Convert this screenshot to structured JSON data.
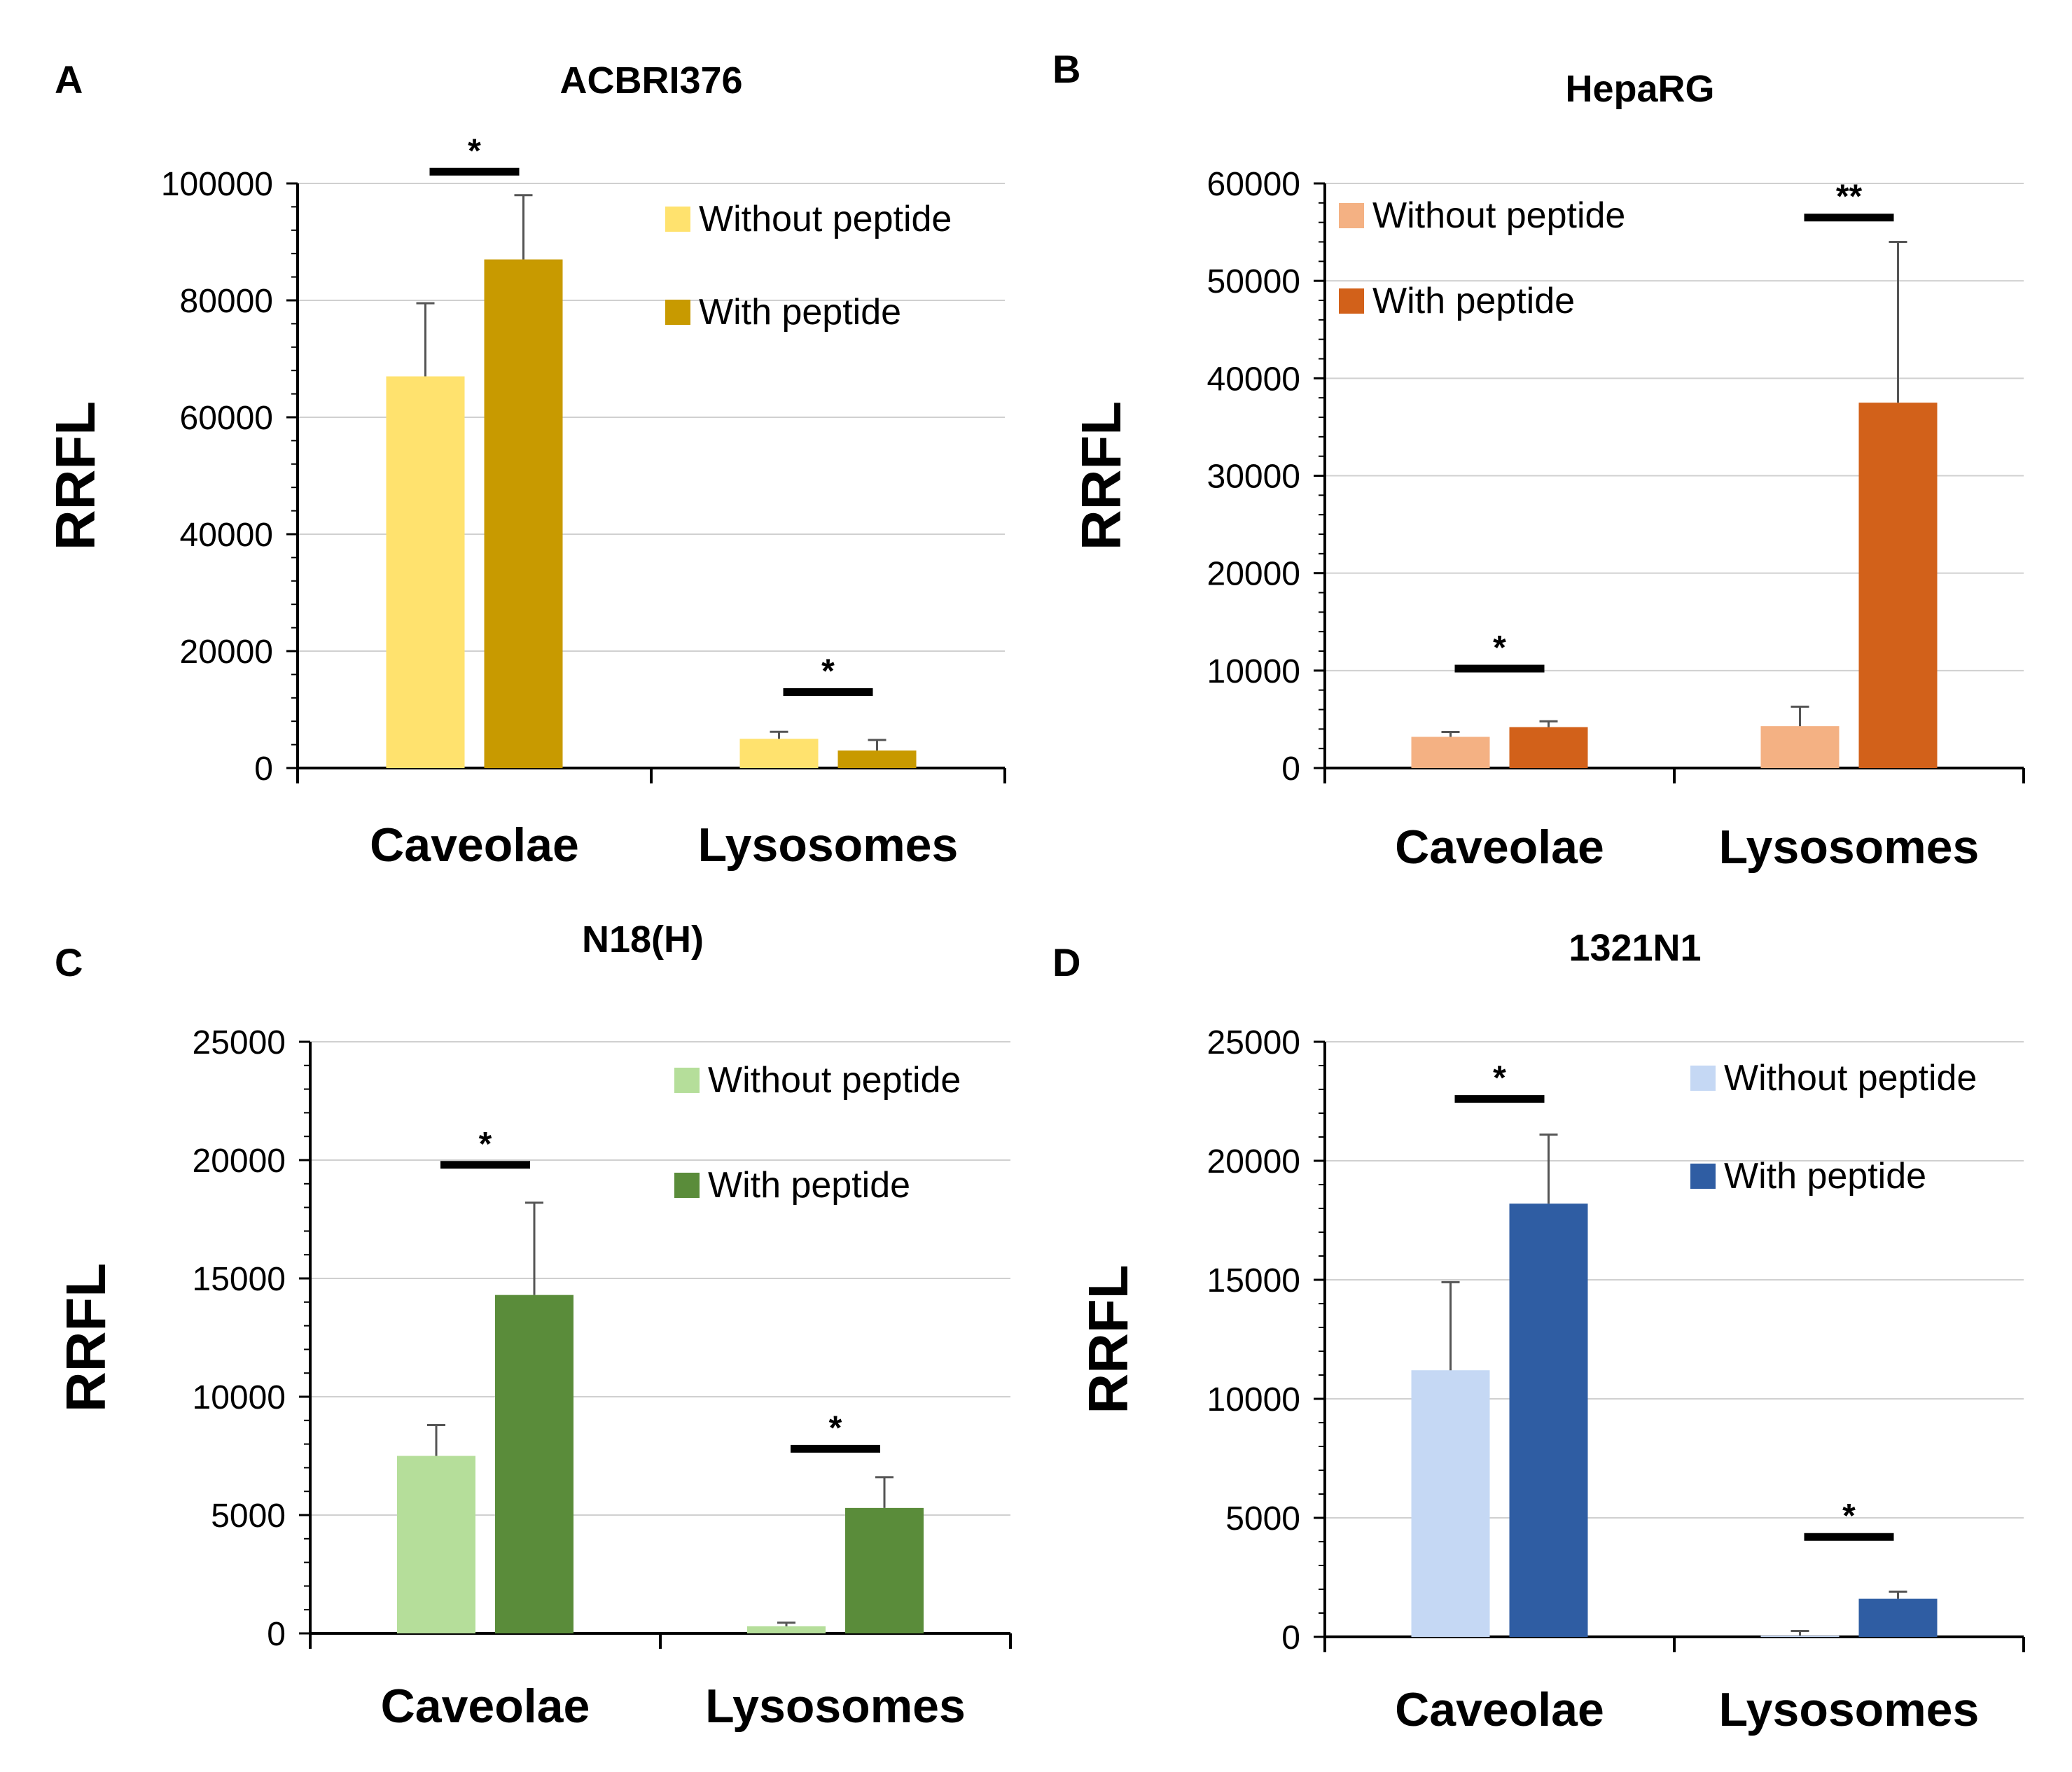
{
  "chart_data": [
    {
      "type": "bar",
      "panel": "A",
      "title": "ACBRI376",
      "ylabel": "RRFL",
      "xlabel": "",
      "categories": [
        "Caveolae",
        "Lysosomes"
      ],
      "ylim": [
        0,
        100000
      ],
      "yticks": [
        0,
        20000,
        40000,
        60000,
        80000,
        100000
      ],
      "grid": true,
      "legend_position": "top-right",
      "series": [
        {
          "name": "Without peptide",
          "color": "#FFE26E",
          "values": [
            67000,
            5000
          ],
          "errors": [
            12500,
            1200
          ]
        },
        {
          "name": "With peptide",
          "color": "#C89A00",
          "values": [
            87000,
            3000
          ],
          "errors": [
            11000,
            1800
          ]
        }
      ],
      "significance": [
        {
          "category": "Caveolae",
          "label": "*",
          "level": 102000
        },
        {
          "category": "Lysosomes",
          "label": "*",
          "level": 13000
        }
      ]
    },
    {
      "type": "bar",
      "panel": "B",
      "title": "HepaRG",
      "ylabel": "RRFL",
      "xlabel": "",
      "categories": [
        "Caveolae",
        "Lysosomes"
      ],
      "ylim": [
        0,
        60000
      ],
      "yticks": [
        0,
        10000,
        20000,
        30000,
        40000,
        50000,
        60000
      ],
      "grid": true,
      "legend_position": "top-left",
      "series": [
        {
          "name": "Without peptide",
          "color": "#F4B183",
          "values": [
            3200,
            4300
          ],
          "errors": [
            500,
            2000
          ]
        },
        {
          "name": "With peptide",
          "color": "#D2611A",
          "values": [
            4200,
            37500
          ],
          "errors": [
            600,
            16500
          ]
        }
      ],
      "significance": [
        {
          "category": "Caveolae",
          "label": "*",
          "level": 10200
        },
        {
          "category": "Lysosomes",
          "label": "**",
          "level": 56500
        }
      ]
    },
    {
      "type": "bar",
      "panel": "C",
      "title": "N18(H)",
      "ylabel": "RRFL",
      "xlabel": "",
      "categories": [
        "Caveolae",
        "Lysosomes"
      ],
      "ylim": [
        0,
        25000
      ],
      "yticks": [
        0,
        5000,
        10000,
        15000,
        20000,
        25000
      ],
      "grid": true,
      "legend_position": "top-right",
      "series": [
        {
          "name": "Without peptide",
          "color": "#B5DE9A",
          "values": [
            7500,
            300
          ],
          "errors": [
            1300,
            150
          ]
        },
        {
          "name": "With peptide",
          "color": "#5A8C3A",
          "values": [
            14300,
            5300
          ],
          "errors": [
            3900,
            1300
          ]
        }
      ],
      "significance": [
        {
          "category": "Caveolae",
          "label": "*",
          "level": 19800
        },
        {
          "category": "Lysosomes",
          "label": "*",
          "level": 7800
        }
      ]
    },
    {
      "type": "bar",
      "panel": "D",
      "title": "1321N1",
      "ylabel": "RRFL",
      "xlabel": "",
      "categories": [
        "Caveolae",
        "Lysosomes"
      ],
      "ylim": [
        0,
        25000
      ],
      "yticks": [
        0,
        5000,
        10000,
        15000,
        20000,
        25000
      ],
      "grid": true,
      "legend_position": "top-right",
      "series": [
        {
          "name": "Without peptide",
          "color": "#C5D8F4",
          "values": [
            11200,
            50
          ],
          "errors": [
            3700,
            200
          ]
        },
        {
          "name": "With peptide",
          "color": "#2F5DA3",
          "values": [
            18200,
            1600
          ],
          "errors": [
            2900,
            300
          ]
        }
      ],
      "significance": [
        {
          "category": "Caveolae",
          "label": "*",
          "level": 22600
        },
        {
          "category": "Lysosomes",
          "label": "*",
          "level": 4200
        }
      ]
    }
  ]
}
